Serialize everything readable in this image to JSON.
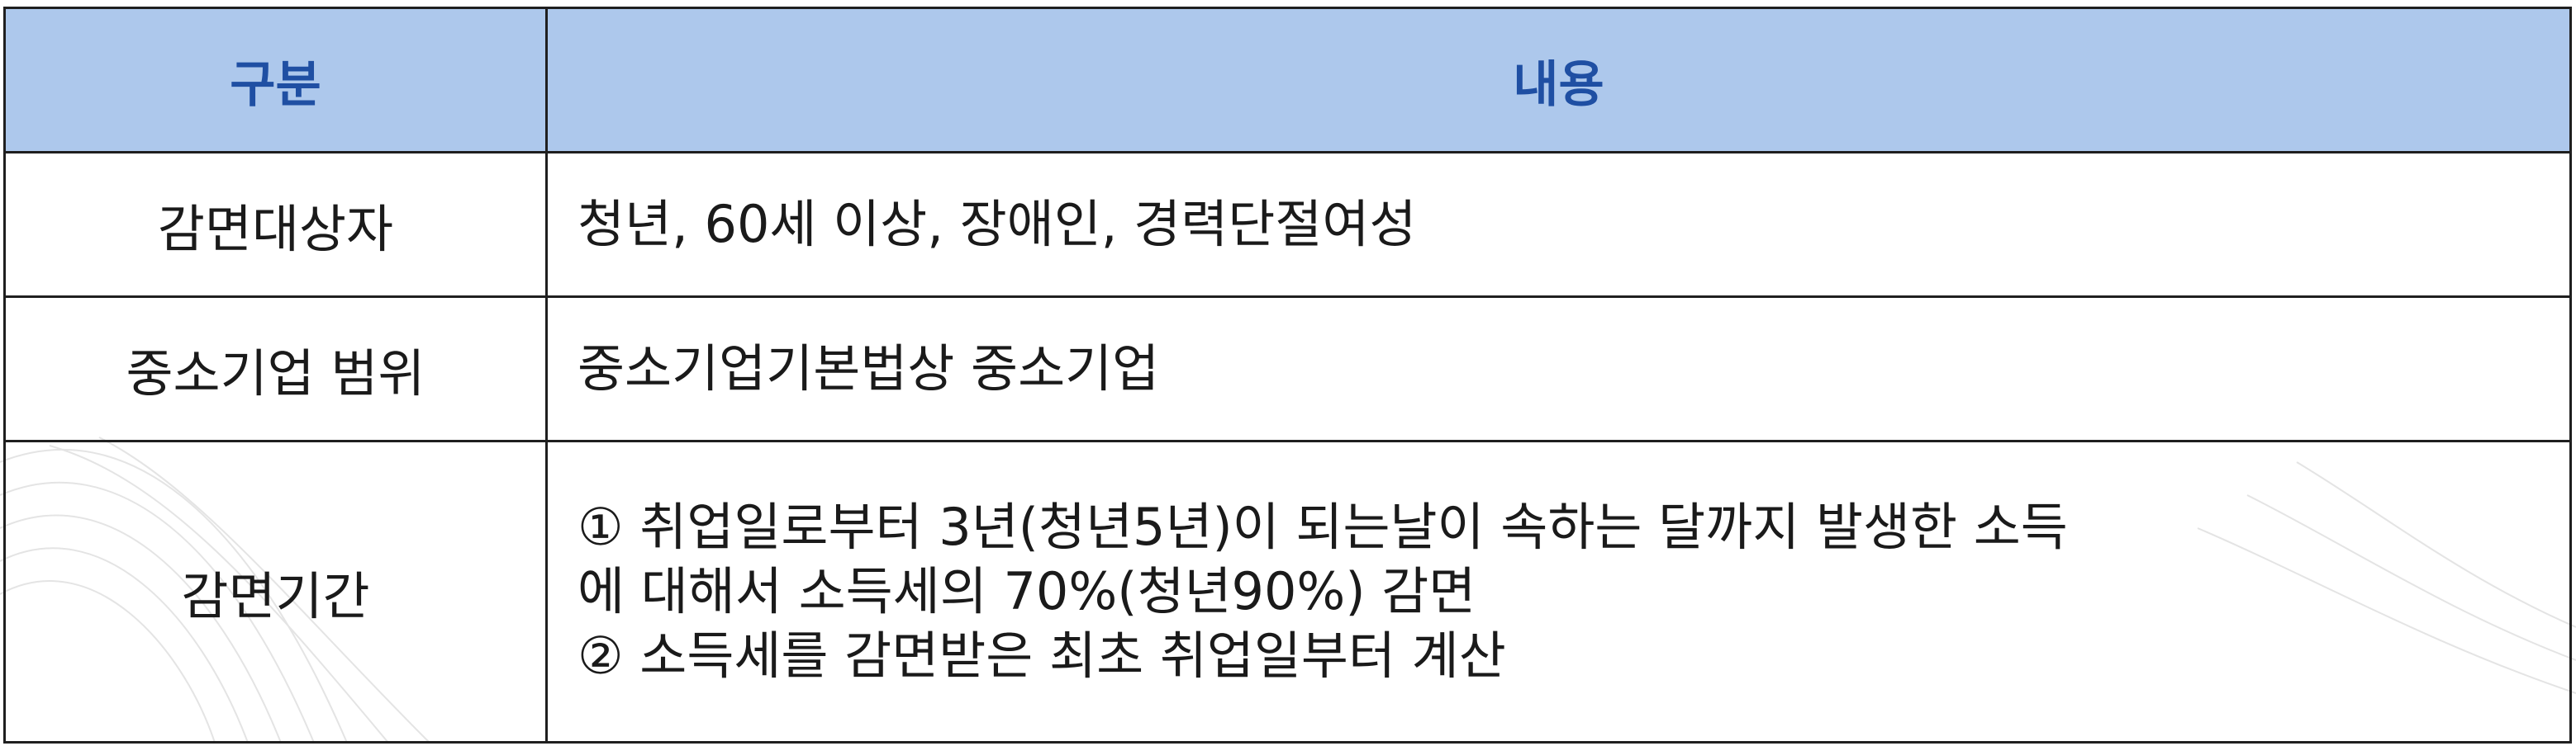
{
  "table": {
    "headers": [
      "구분",
      "내용"
    ],
    "rows": [
      {
        "label": "감면대상자",
        "content": [
          "청년, 60세 이상, 장애인, 경력단절여성"
        ]
      },
      {
        "label": "중소기업 범위",
        "content": [
          "중소기업기본법상 중소기업"
        ]
      },
      {
        "label": "감면기간",
        "content": [
          "① 취업일로부터 3년(청년5년)이 되는날이 속하는 달까지 발생한 소득",
          "에 대해서 소득세의 70%(청년90%) 감면",
          "② 소득세를 감면받은 최초 취업일부터 계산"
        ]
      }
    ]
  },
  "colors": {
    "header_bg": "#adc8ec",
    "header_text": "#1f4fa3",
    "border": "#1f1f1f",
    "body_text": "#1a1a1a"
  }
}
